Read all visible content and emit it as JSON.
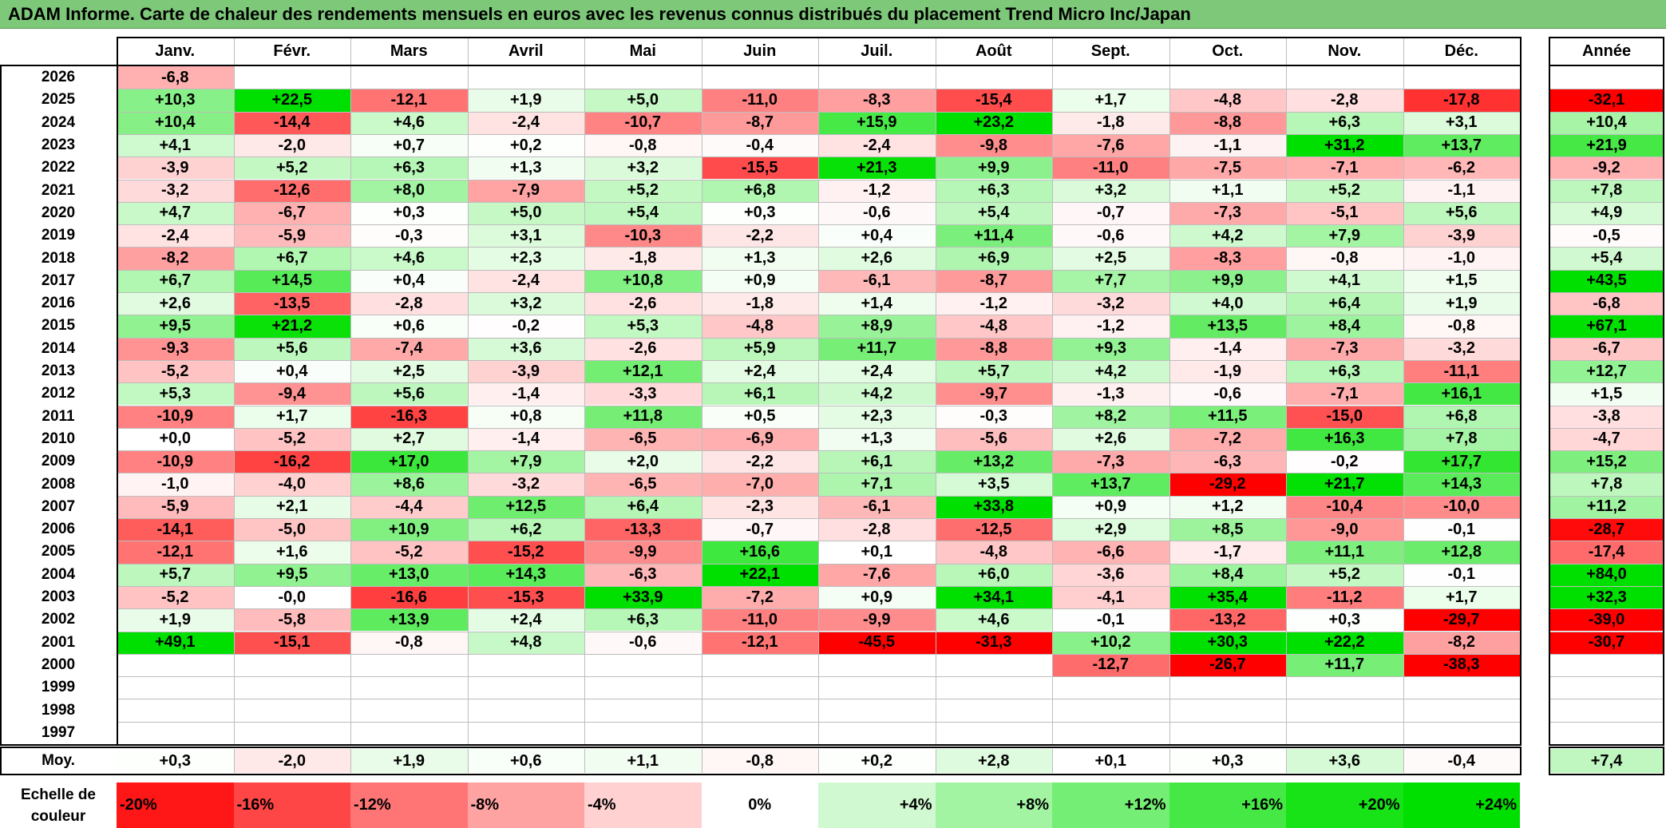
{
  "title": "ADAM Informe. Carte de chaleur des rendements mensuels en euros avec les revenus connus distribués du placement Trend Micro Inc/Japan",
  "colors": {
    "positive_max": "#00e000",
    "negative_max": "#ff0000",
    "neutral": "#ffffff",
    "title_bg": "#7ec87a"
  },
  "chart_data": {
    "type": "heatmap",
    "title": "ADAM Informe. Carte de chaleur des rendements mensuels en euros avec les revenus connus distribués du placement Trend Micro Inc/Japan",
    "months": [
      "Janv.",
      "Févr.",
      "Mars",
      "Avril",
      "Mai",
      "Juin",
      "Juil.",
      "Août",
      "Sept.",
      "Oct.",
      "Nov.",
      "Déc."
    ],
    "year_col_label": "Année",
    "rows": [
      {
        "year": "2026",
        "values": [
          "-6,8",
          "",
          "",
          "",
          "",
          "",
          "",
          "",
          "",
          "",
          "",
          ""
        ],
        "annual": ""
      },
      {
        "year": "2025",
        "values": [
          "+10,3",
          "+22,5",
          "-12,1",
          "+1,9",
          "+5,0",
          "-11,0",
          "-8,3",
          "-15,4",
          "+1,7",
          "-4,8",
          "-2,8",
          "-17,8"
        ],
        "annual": "-32,1"
      },
      {
        "year": "2024",
        "values": [
          "+10,4",
          "-14,4",
          "+4,6",
          "-2,4",
          "-10,7",
          "-8,7",
          "+15,9",
          "+23,2",
          "-1,8",
          "-8,8",
          "+6,3",
          "+3,1"
        ],
        "annual": "+10,4"
      },
      {
        "year": "2023",
        "values": [
          "+4,1",
          "-2,0",
          "+0,7",
          "+0,2",
          "-0,8",
          "-0,4",
          "-2,4",
          "-9,8",
          "-7,6",
          "-1,1",
          "+31,2",
          "+13,7"
        ],
        "annual": "+21,9"
      },
      {
        "year": "2022",
        "values": [
          "-3,9",
          "+5,2",
          "+6,3",
          "+1,3",
          "+3,2",
          "-15,5",
          "+21,3",
          "+9,9",
          "-11,0",
          "-7,5",
          "-7,1",
          "-6,2"
        ],
        "annual": "-9,2"
      },
      {
        "year": "2021",
        "values": [
          "-3,2",
          "-12,6",
          "+8,0",
          "-7,9",
          "+5,2",
          "+6,8",
          "-1,2",
          "+6,3",
          "+3,2",
          "+1,1",
          "+5,2",
          "-1,1"
        ],
        "annual": "+7,8"
      },
      {
        "year": "2020",
        "values": [
          "+4,7",
          "-6,7",
          "+0,3",
          "+5,0",
          "+5,4",
          "+0,3",
          "-0,6",
          "+5,4",
          "-0,7",
          "-7,3",
          "-5,1",
          "+5,6"
        ],
        "annual": "+4,9"
      },
      {
        "year": "2019",
        "values": [
          "-2,4",
          "-5,9",
          "-0,3",
          "+3,1",
          "-10,3",
          "-2,2",
          "+0,4",
          "+11,4",
          "-0,6",
          "+4,2",
          "+7,9",
          "-3,9"
        ],
        "annual": "-0,5"
      },
      {
        "year": "2018",
        "values": [
          "-8,2",
          "+6,7",
          "+4,6",
          "+2,3",
          "-1,8",
          "+1,3",
          "+2,6",
          "+6,9",
          "+2,5",
          "-8,3",
          "-0,8",
          "-1,0"
        ],
        "annual": "+5,4"
      },
      {
        "year": "2017",
        "values": [
          "+6,7",
          "+14,5",
          "+0,4",
          "-2,4",
          "+10,8",
          "+0,9",
          "-6,1",
          "-8,7",
          "+7,7",
          "+9,9",
          "+4,1",
          "+1,5"
        ],
        "annual": "+43,5"
      },
      {
        "year": "2016",
        "values": [
          "+2,6",
          "-13,5",
          "-2,8",
          "+3,2",
          "-2,6",
          "-1,8",
          "+1,4",
          "-1,2",
          "-3,2",
          "+4,0",
          "+6,4",
          "+1,9"
        ],
        "annual": "-6,8"
      },
      {
        "year": "2015",
        "values": [
          "+9,5",
          "+21,2",
          "+0,6",
          "-0,2",
          "+5,3",
          "-4,8",
          "+8,9",
          "-4,8",
          "-1,2",
          "+13,5",
          "+8,4",
          "-0,8"
        ],
        "annual": "+67,1"
      },
      {
        "year": "2014",
        "values": [
          "-9,3",
          "+5,6",
          "-7,4",
          "+3,6",
          "-2,6",
          "+5,9",
          "+11,7",
          "-8,8",
          "+9,3",
          "-1,4",
          "-7,3",
          "-3,2"
        ],
        "annual": "-6,7"
      },
      {
        "year": "2013",
        "values": [
          "-5,2",
          "+0,4",
          "+2,5",
          "-3,9",
          "+12,1",
          "+2,4",
          "+2,4",
          "+5,7",
          "+4,2",
          "-1,9",
          "+6,3",
          "-11,1"
        ],
        "annual": "+12,7"
      },
      {
        "year": "2012",
        "values": [
          "+5,3",
          "-9,4",
          "+5,6",
          "-1,4",
          "-3,3",
          "+6,1",
          "+4,2",
          "-9,7",
          "-1,3",
          "-0,6",
          "-7,1",
          "+16,1"
        ],
        "annual": "+1,5"
      },
      {
        "year": "2011",
        "values": [
          "-10,9",
          "+1,7",
          "-16,3",
          "+0,8",
          "+11,8",
          "+0,5",
          "+2,3",
          "-0,3",
          "+8,2",
          "+11,5",
          "-15,0",
          "+6,8"
        ],
        "annual": "-3,8"
      },
      {
        "year": "2010",
        "values": [
          "+0,0",
          "-5,2",
          "+2,7",
          "-1,4",
          "-6,5",
          "-6,9",
          "+1,3",
          "-5,6",
          "+2,6",
          "-7,2",
          "+16,3",
          "+7,8"
        ],
        "annual": "-4,7"
      },
      {
        "year": "2009",
        "values": [
          "-10,9",
          "-16,2",
          "+17,0",
          "+7,9",
          "+2,0",
          "-2,2",
          "+6,1",
          "+13,2",
          "-7,3",
          "-6,3",
          "-0,2",
          "+17,7"
        ],
        "annual": "+15,2"
      },
      {
        "year": "2008",
        "values": [
          "-1,0",
          "-4,0",
          "+8,6",
          "-3,2",
          "-6,5",
          "-7,0",
          "+7,1",
          "+3,5",
          "+13,7",
          "-29,2",
          "+21,7",
          "+14,3"
        ],
        "annual": "+7,8"
      },
      {
        "year": "2007",
        "values": [
          "-5,9",
          "+2,1",
          "-4,4",
          "+12,5",
          "+6,4",
          "-2,3",
          "-6,1",
          "+33,8",
          "+0,9",
          "+1,2",
          "-10,4",
          "-10,0"
        ],
        "annual": "+11,2"
      },
      {
        "year": "2006",
        "values": [
          "-14,1",
          "-5,0",
          "+10,9",
          "+6,2",
          "-13,3",
          "-0,7",
          "-2,8",
          "-12,5",
          "+2,9",
          "+8,5",
          "-9,0",
          "-0,1"
        ],
        "annual": "-28,7"
      },
      {
        "year": "2005",
        "values": [
          "-12,1",
          "+1,6",
          "-5,2",
          "-15,2",
          "-9,9",
          "+16,6",
          "+0,1",
          "-4,8",
          "-6,6",
          "-1,7",
          "+11,1",
          "+12,8"
        ],
        "annual": "-17,4"
      },
      {
        "year": "2004",
        "values": [
          "+5,7",
          "+9,5",
          "+13,0",
          "+14,3",
          "-6,3",
          "+22,1",
          "-7,6",
          "+6,0",
          "-3,6",
          "+8,4",
          "+5,2",
          "-0,1"
        ],
        "annual": "+84,0"
      },
      {
        "year": "2003",
        "values": [
          "-5,2",
          "-0,0",
          "-16,6",
          "-15,3",
          "+33,9",
          "-7,2",
          "+0,9",
          "+34,1",
          "-4,1",
          "+35,4",
          "-11,2",
          "+1,7"
        ],
        "annual": "+32,3"
      },
      {
        "year": "2002",
        "values": [
          "+1,9",
          "-5,8",
          "+13,9",
          "+2,4",
          "+6,3",
          "-11,0",
          "-9,9",
          "+4,6",
          "-0,1",
          "-13,2",
          "+0,3",
          "-29,7"
        ],
        "annual": "-39,0"
      },
      {
        "year": "2001",
        "values": [
          "+49,1",
          "-15,1",
          "-0,8",
          "+4,8",
          "-0,6",
          "-12,1",
          "-45,5",
          "-31,3",
          "+10,2",
          "+30,3",
          "+22,2",
          "-8,2"
        ],
        "annual": "-30,7"
      },
      {
        "year": "2000",
        "values": [
          "",
          "",
          "",
          "",
          "",
          "",
          "",
          "",
          "-12,7",
          "-26,7",
          "+11,7",
          "-38,3"
        ],
        "annual": ""
      },
      {
        "year": "1999",
        "values": [
          "",
          "",
          "",
          "",
          "",
          "",
          "",
          "",
          "",
          "",
          "",
          ""
        ],
        "annual": ""
      },
      {
        "year": "1998",
        "values": [
          "",
          "",
          "",
          "",
          "",
          "",
          "",
          "",
          "",
          "",
          "",
          ""
        ],
        "annual": ""
      },
      {
        "year": "1997",
        "values": [
          "",
          "",
          "",
          "",
          "",
          "",
          "",
          "",
          "",
          "",
          "",
          ""
        ],
        "annual": ""
      }
    ],
    "average": {
      "label": "Moy.",
      "values": [
        "+0,3",
        "-2,0",
        "+1,9",
        "+0,6",
        "+1,1",
        "-0,8",
        "+0,2",
        "+2,8",
        "+0,1",
        "+0,3",
        "+3,6",
        "-0,4"
      ],
      "annual": "+7,4"
    },
    "color_scale": {
      "label": "Echelle de couleur",
      "steps": [
        {
          "label": "-20%",
          "value": -20
        },
        {
          "label": "-16%",
          "value": -16
        },
        {
          "label": "-12%",
          "value": -12
        },
        {
          "label": "-8%",
          "value": -8
        },
        {
          "label": "-4%",
          "value": -4
        },
        {
          "label": "0%",
          "value": 0
        },
        {
          "label": "+4%",
          "value": 4
        },
        {
          "label": "+8%",
          "value": 8
        },
        {
          "label": "+12%",
          "value": 12
        },
        {
          "label": "+16%",
          "value": 16
        },
        {
          "label": "+20%",
          "value": 20
        },
        {
          "label": "+24%",
          "value": 24
        }
      ]
    }
  }
}
